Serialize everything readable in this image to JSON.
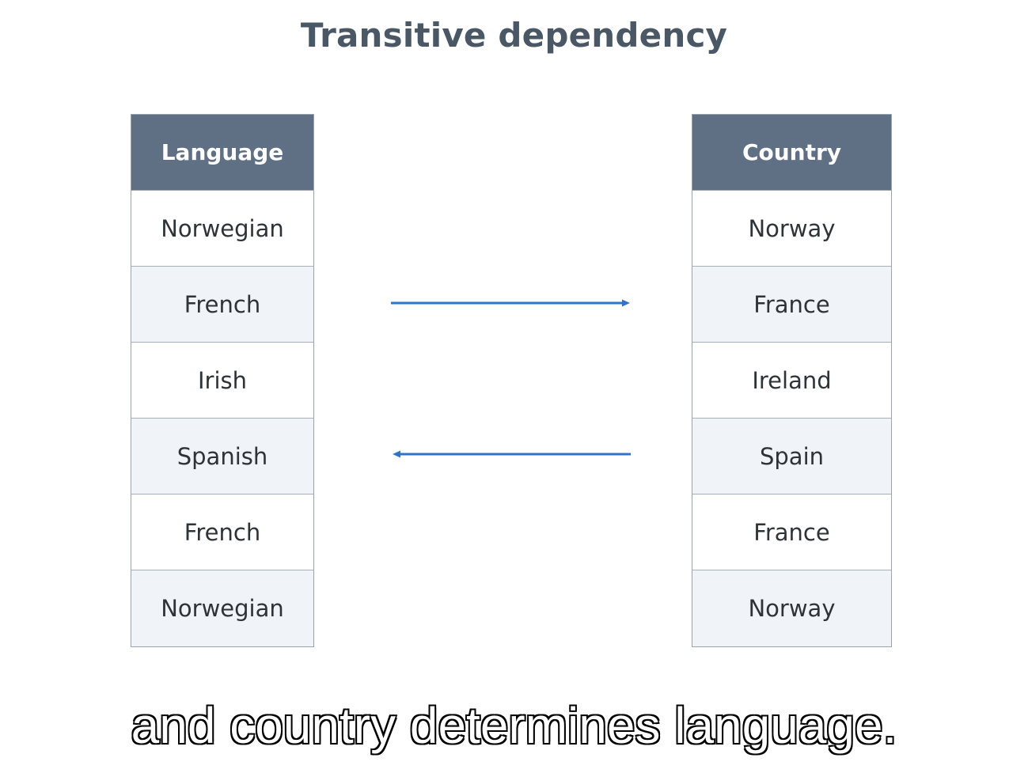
{
  "title": "Transitive dependency",
  "language_table": {
    "header": "Language",
    "rows": [
      "Norwegian",
      "French",
      "Irish",
      "Spanish",
      "French",
      "Norwegian"
    ]
  },
  "country_table": {
    "header": "Country",
    "rows": [
      "Norway",
      "France",
      "Ireland",
      "Spain",
      "France",
      "Norway"
    ]
  },
  "arrows": [
    {
      "from": "Language",
      "to": "Country",
      "direction": "right",
      "row": "French",
      "color": "#2f74c8"
    },
    {
      "from": "Country",
      "to": "Language",
      "direction": "left",
      "row": "Spanish",
      "color": "#2f74c8"
    }
  ],
  "caption": "and country determines language.",
  "colors": {
    "header_bg": "#5f7085",
    "alt_row_bg": "#f0f3f7",
    "title": "#4a5866",
    "arrow": "#2f74c8"
  }
}
